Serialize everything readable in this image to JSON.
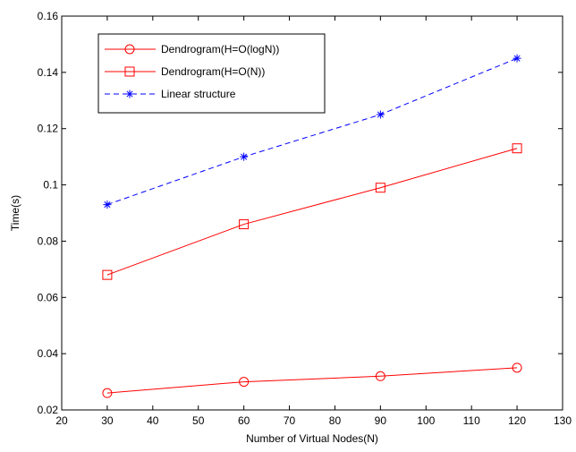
{
  "chart_data": {
    "type": "line",
    "title": "",
    "xlabel": "Number of Virtual Nodes(N)",
    "ylabel": "Time(s)",
    "xlim": [
      20,
      130
    ],
    "ylim": [
      0.02,
      0.16
    ],
    "xticks": [
      20,
      30,
      40,
      50,
      60,
      70,
      80,
      90,
      100,
      110,
      120,
      130
    ],
    "yticks": [
      0.02,
      0.04,
      0.06,
      0.08,
      0.1,
      0.12,
      0.14,
      0.16
    ],
    "xtick_labels": [
      "20",
      "30",
      "40",
      "50",
      "60",
      "70",
      "80",
      "90",
      "100",
      "110",
      "120",
      "130"
    ],
    "ytick_labels": [
      "0.02",
      "0.04",
      "0.06",
      "0.08",
      "0.1",
      "0.12",
      "0.14",
      "0.16"
    ],
    "grid": false,
    "legend_position": "top-left",
    "x": [
      30,
      60,
      90,
      120
    ],
    "series": [
      {
        "name": "Dendrogram(H=O(logN))",
        "values": [
          0.026,
          0.03,
          0.032,
          0.035
        ],
        "color": "#ff0000",
        "line_style": "solid",
        "marker": "circle"
      },
      {
        "name": "Dendrogram(H=O(N))",
        "values": [
          0.068,
          0.086,
          0.099,
          0.113
        ],
        "color": "#ff0000",
        "line_style": "solid",
        "marker": "square"
      },
      {
        "name": "Linear structure",
        "values": [
          0.093,
          0.11,
          0.125,
          0.145
        ],
        "color": "#0000ff",
        "line_style": "dashed",
        "marker": "star"
      }
    ]
  }
}
